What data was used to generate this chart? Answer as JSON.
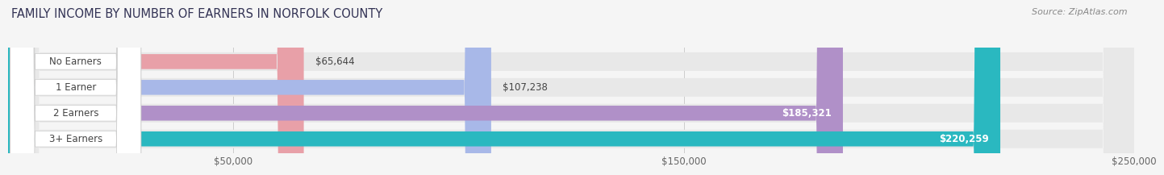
{
  "title": "FAMILY INCOME BY NUMBER OF EARNERS IN NORFOLK COUNTY",
  "source": "Source: ZipAtlas.com",
  "categories": [
    "No Earners",
    "1 Earner",
    "2 Earners",
    "3+ Earners"
  ],
  "values": [
    65644,
    107238,
    185321,
    220259
  ],
  "bar_colors": [
    "#e8a0a8",
    "#a8b8e8",
    "#b090c8",
    "#2ab8c0"
  ],
  "value_labels": [
    "$65,644",
    "$107,238",
    "$185,321",
    "$220,259"
  ],
  "value_label_inside": [
    false,
    false,
    true,
    true
  ],
  "xlim": [
    0,
    250000
  ],
  "xticks": [
    50000,
    150000,
    250000
  ],
  "xtick_labels": [
    "$50,000",
    "$150,000",
    "$250,000"
  ],
  "background_color": "#f5f5f5",
  "bar_background_color": "#e8e8e8",
  "label_pill_color": "#ffffff",
  "title_fontsize": 10.5,
  "tick_fontsize": 8.5,
  "source_fontsize": 8,
  "bar_label_fontsize": 8.5,
  "cat_label_fontsize": 8.5
}
